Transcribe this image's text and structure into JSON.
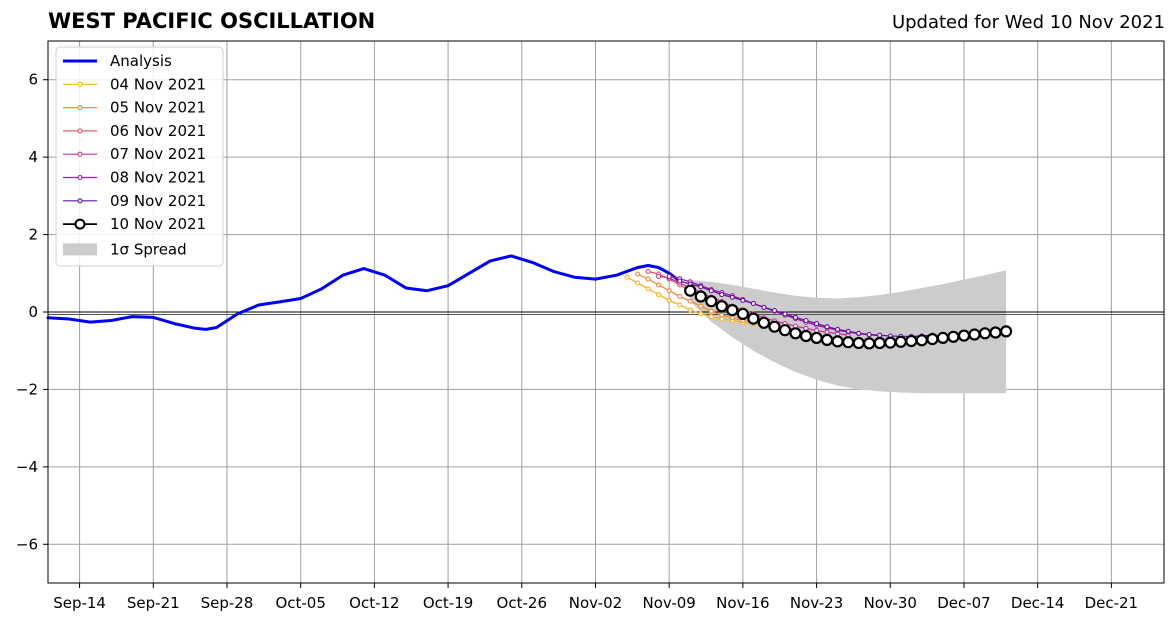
{
  "chart_data": {
    "type": "line",
    "title": "WEST PACIFIC OSCILLATION",
    "subtitle": "Updated for Wed 10 Nov 2021",
    "xlabel": "",
    "ylabel": "",
    "xlim": [
      "2021-09-11",
      "2021-12-26"
    ],
    "ylim": [
      -7,
      7
    ],
    "grid": true,
    "legend_position": "top-left",
    "x_ticks": [
      {
        "date": "2021-09-14",
        "label": "Sep-14"
      },
      {
        "date": "2021-09-21",
        "label": "Sep-21"
      },
      {
        "date": "2021-09-28",
        "label": "Sep-28"
      },
      {
        "date": "2021-10-05",
        "label": "Oct-05"
      },
      {
        "date": "2021-10-12",
        "label": "Oct-12"
      },
      {
        "date": "2021-10-19",
        "label": "Oct-19"
      },
      {
        "date": "2021-10-26",
        "label": "Oct-26"
      },
      {
        "date": "2021-11-02",
        "label": "Nov-02"
      },
      {
        "date": "2021-11-09",
        "label": "Nov-09"
      },
      {
        "date": "2021-11-16",
        "label": "Nov-16"
      },
      {
        "date": "2021-11-23",
        "label": "Nov-23"
      },
      {
        "date": "2021-11-30",
        "label": "Nov-30"
      },
      {
        "date": "2021-12-07",
        "label": "Dec-07"
      },
      {
        "date": "2021-12-14",
        "label": "Dec-14"
      },
      {
        "date": "2021-12-21",
        "label": "Dec-21"
      }
    ],
    "y_ticks": [
      {
        "value": 6,
        "label": "6"
      },
      {
        "value": 4,
        "label": "4"
      },
      {
        "value": 2,
        "label": "2"
      },
      {
        "value": 0,
        "label": "0"
      },
      {
        "value": -2,
        "label": "−2"
      },
      {
        "value": -4,
        "label": "−4"
      },
      {
        "value": -6,
        "label": "−6"
      }
    ],
    "analysis": {
      "name": "Analysis",
      "color": "#0000ff",
      "x": [
        "2021-09-11",
        "2021-09-13",
        "2021-09-15",
        "2021-09-17",
        "2021-09-19",
        "2021-09-21",
        "2021-09-23",
        "2021-09-25",
        "2021-09-26",
        "2021-09-27",
        "2021-09-29",
        "2021-10-01",
        "2021-10-03",
        "2021-10-05",
        "2021-10-07",
        "2021-10-09",
        "2021-10-11",
        "2021-10-13",
        "2021-10-15",
        "2021-10-17",
        "2021-10-19",
        "2021-10-21",
        "2021-10-23",
        "2021-10-25",
        "2021-10-27",
        "2021-10-29",
        "2021-10-31",
        "2021-11-02",
        "2021-11-04",
        "2021-11-06",
        "2021-11-07",
        "2021-11-08",
        "2021-11-09",
        "2021-11-10"
      ],
      "y": [
        -0.15,
        -0.18,
        -0.26,
        -0.22,
        -0.12,
        -0.14,
        -0.3,
        -0.42,
        -0.45,
        -0.4,
        -0.05,
        0.18,
        0.26,
        0.35,
        0.6,
        0.95,
        1.12,
        0.95,
        0.62,
        0.55,
        0.68,
        1.0,
        1.32,
        1.45,
        1.28,
        1.05,
        0.9,
        0.85,
        0.95,
        1.15,
        1.2,
        1.15,
        1.0,
        0.8
      ]
    },
    "series": [
      {
        "name": "04 Nov 2021",
        "color": "#ffb31a",
        "x": [
          "2021-11-05",
          "2021-11-06",
          "2021-11-07",
          "2021-11-08",
          "2021-11-09",
          "2021-11-10",
          "2021-11-11",
          "2021-11-12",
          "2021-11-13",
          "2021-11-14",
          "2021-11-15",
          "2021-11-16",
          "2021-11-17",
          "2021-11-18",
          "2021-11-19"
        ],
        "y": [
          0.9,
          0.75,
          0.6,
          0.45,
          0.3,
          0.18,
          0.05,
          -0.05,
          -0.12,
          -0.18,
          -0.22,
          -0.27,
          -0.3,
          -0.32,
          -0.34
        ]
      },
      {
        "name": "05 Nov 2021",
        "color": "#f7873b",
        "x": [
          "2021-11-06",
          "2021-11-07",
          "2021-11-08",
          "2021-11-09",
          "2021-11-10",
          "2021-11-11",
          "2021-11-12",
          "2021-11-13",
          "2021-11-14",
          "2021-11-15",
          "2021-11-16",
          "2021-11-17",
          "2021-11-18",
          "2021-11-19",
          "2021-11-20"
        ],
        "y": [
          0.98,
          0.85,
          0.7,
          0.55,
          0.4,
          0.28,
          0.15,
          0.02,
          -0.08,
          -0.15,
          -0.22,
          -0.28,
          -0.33,
          -0.38,
          -0.42
        ]
      },
      {
        "name": "06 Nov 2021",
        "color": "#e05c6c",
        "x": [
          "2021-11-07",
          "2021-11-08",
          "2021-11-09",
          "2021-11-10",
          "2021-11-11",
          "2021-11-12",
          "2021-11-13",
          "2021-11-14",
          "2021-11-15",
          "2021-11-16",
          "2021-11-17",
          "2021-11-18",
          "2021-11-19",
          "2021-11-20",
          "2021-11-21"
        ],
        "y": [
          1.05,
          0.98,
          0.85,
          0.7,
          0.55,
          0.42,
          0.3,
          0.18,
          0.05,
          -0.05,
          -0.15,
          -0.25,
          -0.33,
          -0.4,
          -0.45
        ]
      },
      {
        "name": "07 Nov 2021",
        "color": "#c0399a",
        "x": [
          "2021-11-08",
          "2021-11-09",
          "2021-11-10",
          "2021-11-11",
          "2021-11-12",
          "2021-11-13",
          "2021-11-14",
          "2021-11-15",
          "2021-11-16",
          "2021-11-17",
          "2021-11-18",
          "2021-11-19",
          "2021-11-20",
          "2021-11-21",
          "2021-11-22",
          "2021-11-23",
          "2021-11-24",
          "2021-11-25",
          "2021-11-26"
        ],
        "y": [
          0.92,
          0.88,
          0.75,
          0.62,
          0.5,
          0.38,
          0.27,
          0.15,
          0.05,
          -0.05,
          -0.15,
          -0.23,
          -0.3,
          -0.37,
          -0.42,
          -0.48,
          -0.52,
          -0.56,
          -0.6
        ]
      },
      {
        "name": "08 Nov 2021",
        "color": "#9a1ea6",
        "x": [
          "2021-11-09",
          "2021-11-10",
          "2021-11-11",
          "2021-11-12",
          "2021-11-13",
          "2021-11-14",
          "2021-11-15",
          "2021-11-16",
          "2021-11-17",
          "2021-11-18",
          "2021-11-19",
          "2021-11-20",
          "2021-11-21",
          "2021-11-22",
          "2021-11-23",
          "2021-11-24",
          "2021-11-25",
          "2021-11-26",
          "2021-11-27",
          "2021-11-28",
          "2021-11-29"
        ],
        "y": [
          0.92,
          0.86,
          0.78,
          0.68,
          0.58,
          0.5,
          0.42,
          0.32,
          0.22,
          0.12,
          0.02,
          -0.08,
          -0.17,
          -0.26,
          -0.34,
          -0.41,
          -0.47,
          -0.52,
          -0.56,
          -0.59,
          -0.61
        ]
      },
      {
        "name": "09 Nov 2021",
        "color": "#6a0fa8",
        "x": [
          "2021-11-10",
          "2021-11-11",
          "2021-11-12",
          "2021-11-13",
          "2021-11-14",
          "2021-11-15",
          "2021-11-16",
          "2021-11-17",
          "2021-11-18",
          "2021-11-19",
          "2021-11-20",
          "2021-11-21",
          "2021-11-22",
          "2021-11-23",
          "2021-11-24",
          "2021-11-25",
          "2021-11-26",
          "2021-11-27",
          "2021-11-28",
          "2021-11-29",
          "2021-11-30",
          "2021-12-01",
          "2021-12-02",
          "2021-12-03",
          "2021-12-04"
        ],
        "y": [
          0.8,
          0.72,
          0.65,
          0.55,
          0.45,
          0.38,
          0.3,
          0.22,
          0.12,
          0.04,
          -0.05,
          -0.14,
          -0.22,
          -0.3,
          -0.38,
          -0.45,
          -0.5,
          -0.55,
          -0.58,
          -0.6,
          -0.62,
          -0.63,
          -0.63,
          -0.62,
          -0.6
        ]
      },
      {
        "name": "10 Nov 2021",
        "color": "#000000",
        "x": [
          "2021-11-11",
          "2021-11-12",
          "2021-11-13",
          "2021-11-14",
          "2021-11-15",
          "2021-11-16",
          "2021-11-17",
          "2021-11-18",
          "2021-11-19",
          "2021-11-20",
          "2021-11-21",
          "2021-11-22",
          "2021-11-23",
          "2021-11-24",
          "2021-11-25",
          "2021-11-26",
          "2021-11-27",
          "2021-11-28",
          "2021-11-29",
          "2021-11-30",
          "2021-12-01",
          "2021-12-02",
          "2021-12-03",
          "2021-12-04",
          "2021-12-05",
          "2021-12-06",
          "2021-12-07",
          "2021-12-08",
          "2021-12-09",
          "2021-12-10",
          "2021-12-11"
        ],
        "y": [
          0.55,
          0.4,
          0.28,
          0.15,
          0.05,
          -0.05,
          -0.17,
          -0.28,
          -0.38,
          -0.47,
          -0.55,
          -0.62,
          -0.67,
          -0.72,
          -0.76,
          -0.78,
          -0.8,
          -0.81,
          -0.8,
          -0.79,
          -0.77,
          -0.75,
          -0.73,
          -0.7,
          -0.67,
          -0.64,
          -0.61,
          -0.58,
          -0.55,
          -0.53,
          -0.5
        ]
      }
    ],
    "spread": {
      "name": "1σ Spread",
      "color": "#cccccc",
      "x": [
        "2021-11-11",
        "2021-11-13",
        "2021-11-15",
        "2021-11-17",
        "2021-11-19",
        "2021-11-21",
        "2021-11-23",
        "2021-11-25",
        "2021-11-27",
        "2021-11-29",
        "2021-12-01",
        "2021-12-03",
        "2021-12-05",
        "2021-12-07",
        "2021-12-09",
        "2021-12-11"
      ],
      "upper": [
        0.82,
        0.78,
        0.7,
        0.6,
        0.5,
        0.42,
        0.37,
        0.35,
        0.38,
        0.44,
        0.52,
        0.62,
        0.72,
        0.84,
        0.95,
        1.08
      ],
      "lower": [
        0.28,
        -0.25,
        -0.65,
        -1.0,
        -1.3,
        -1.55,
        -1.75,
        -1.9,
        -2.0,
        -2.05,
        -2.08,
        -2.1,
        -2.1,
        -2.1,
        -2.1,
        -2.1
      ]
    }
  }
}
